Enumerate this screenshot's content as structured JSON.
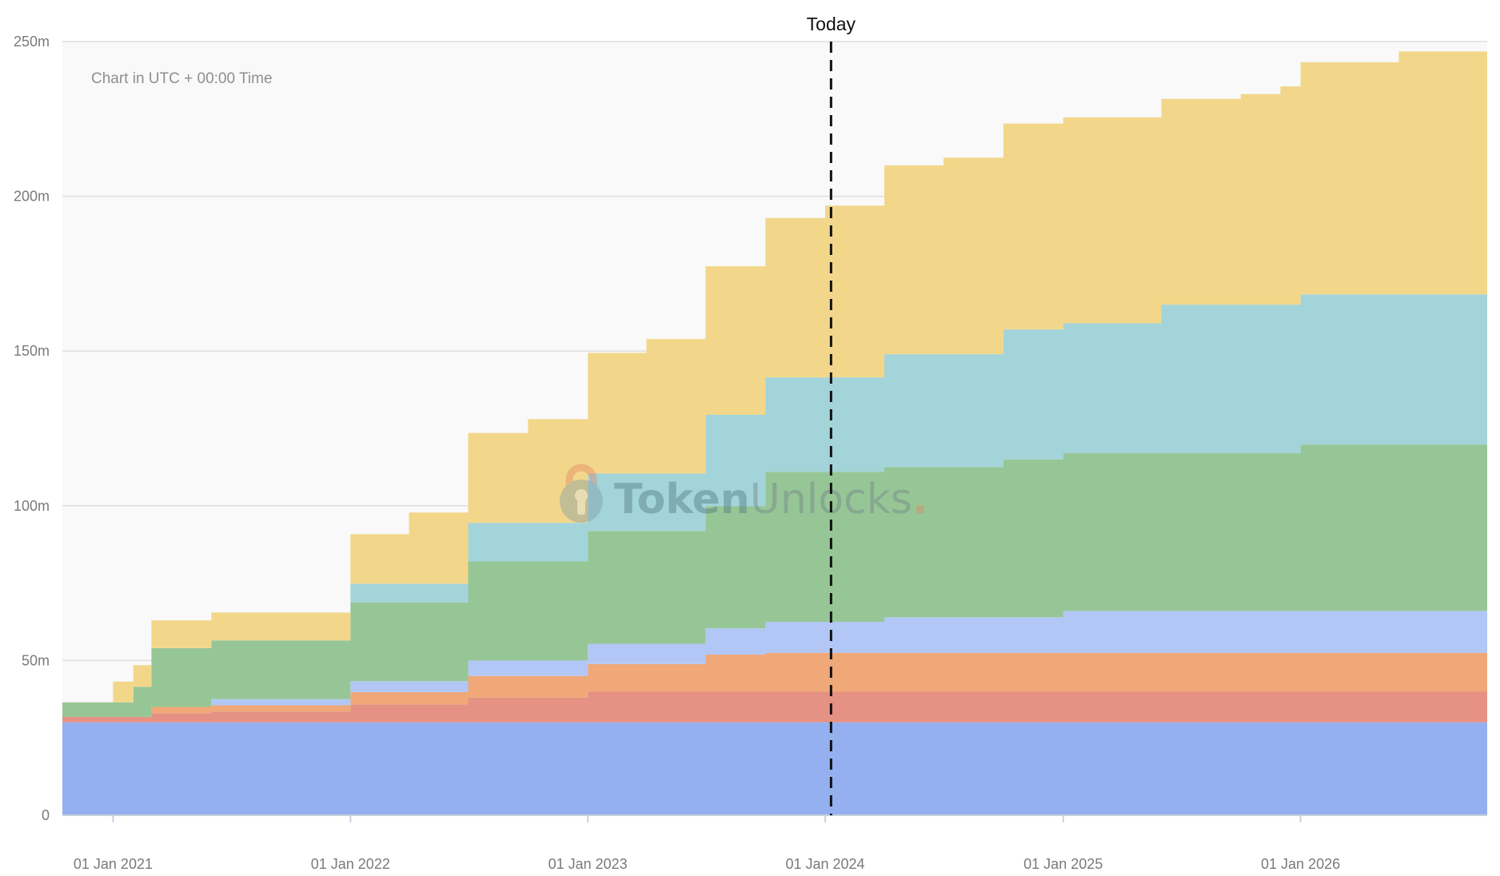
{
  "chart_data": {
    "type": "area",
    "step": true,
    "stacked": true,
    "timezone_note": "Chart in UTC + 00:00 Time",
    "today_label": "Today",
    "today_date": "2024-01-10",
    "watermark": {
      "part1": "Token",
      "part2": "Unlocks",
      "dot": "."
    },
    "ylim": [
      0,
      250000000
    ],
    "yticks": [
      {
        "value": 0,
        "label": "0"
      },
      {
        "value": 50000000,
        "label": "50m"
      },
      {
        "value": 100000000,
        "label": "100m"
      },
      {
        "value": 150000000,
        "label": "150m"
      },
      {
        "value": 200000000,
        "label": "200m"
      },
      {
        "value": 250000000,
        "label": "250m"
      }
    ],
    "xlim": [
      "2020-10-15",
      "2026-10-15"
    ],
    "xticks": [
      {
        "date": "2021-01-01",
        "label": "01 Jan 2021"
      },
      {
        "date": "2022-01-01",
        "label": "01 Jan 2022"
      },
      {
        "date": "2023-01-01",
        "label": "01 Jan 2023"
      },
      {
        "date": "2024-01-01",
        "label": "01 Jan 2024"
      },
      {
        "date": "2025-01-01",
        "label": "01 Jan 2025"
      },
      {
        "date": "2026-01-01",
        "label": "01 Jan 2026"
      }
    ],
    "grid": true,
    "legend": "none",
    "series": [
      {
        "color": "#94b0f1",
        "points": [
          [
            "2020-10-15",
            30000000
          ],
          [
            "2026-10-15",
            30000000
          ]
        ]
      },
      {
        "color": "#e59184",
        "points": [
          [
            "2020-10-15",
            1800000
          ],
          [
            "2021-03-01",
            3000000
          ],
          [
            "2021-06-01",
            3500000
          ],
          [
            "2022-01-01",
            5800000
          ],
          [
            "2022-07-01",
            8000000
          ],
          [
            "2023-01-01",
            9900000
          ],
          [
            "2023-07-01",
            9900000
          ],
          [
            "2024-01-01",
            9900000
          ],
          [
            "2026-10-15",
            9900000
          ]
        ]
      },
      {
        "color": "#f0a878",
        "points": [
          [
            "2020-10-15",
            0
          ],
          [
            "2021-03-01",
            2000000
          ],
          [
            "2021-06-01",
            2000000
          ],
          [
            "2022-01-01",
            4000000
          ],
          [
            "2022-07-01",
            7000000
          ],
          [
            "2023-01-01",
            9000000
          ],
          [
            "2023-07-01",
            12000000
          ],
          [
            "2023-10-01",
            12600000
          ],
          [
            "2024-01-01",
            12600000
          ],
          [
            "2026-10-15",
            12600000
          ]
        ]
      },
      {
        "color": "#b2c7f5",
        "points": [
          [
            "2020-10-15",
            0
          ],
          [
            "2021-03-01",
            0
          ],
          [
            "2021-06-01",
            2000000
          ],
          [
            "2022-01-01",
            3500000
          ],
          [
            "2022-07-01",
            5000000
          ],
          [
            "2023-01-01",
            6500000
          ],
          [
            "2023-07-01",
            8500000
          ],
          [
            "2023-10-01",
            10000000
          ],
          [
            "2024-04-01",
            11500000
          ],
          [
            "2025-01-01",
            13500000
          ],
          [
            "2026-10-15",
            13500000
          ]
        ]
      },
      {
        "color": "#97c696",
        "points": [
          [
            "2020-10-15",
            4700000
          ],
          [
            "2021-01-01",
            4700000
          ],
          [
            "2021-02-01",
            9700000
          ],
          [
            "2021-03-01",
            19000000
          ],
          [
            "2021-06-01",
            19000000
          ],
          [
            "2022-01-01",
            25500000
          ],
          [
            "2022-07-01",
            32000000
          ],
          [
            "2023-01-01",
            36500000
          ],
          [
            "2023-07-01",
            39500000
          ],
          [
            "2023-10-01",
            48500000
          ],
          [
            "2024-04-01",
            48500000
          ],
          [
            "2024-10-01",
            51000000
          ],
          [
            "2025-10-01",
            51000000
          ],
          [
            "2026-01-01",
            53800000
          ],
          [
            "2026-10-15",
            53800000
          ]
        ]
      },
      {
        "color": "#a3d4d9",
        "points": [
          [
            "2020-10-15",
            0
          ],
          [
            "2022-01-01",
            6000000
          ],
          [
            "2022-07-01",
            12500000
          ],
          [
            "2023-01-01",
            18500000
          ],
          [
            "2023-07-01",
            29500000
          ],
          [
            "2023-10-01",
            30500000
          ],
          [
            "2024-04-01",
            36500000
          ],
          [
            "2024-10-01",
            42000000
          ],
          [
            "2025-06-01",
            48000000
          ],
          [
            "2026-01-01",
            48500000
          ],
          [
            "2026-10-15",
            48500000
          ]
        ]
      },
      {
        "color": "#f2d78b",
        "points": [
          [
            "2020-10-15",
            0
          ],
          [
            "2021-01-01",
            6700000
          ],
          [
            "2021-02-01",
            7000000
          ],
          [
            "2021-03-01",
            9000000
          ],
          [
            "2021-06-01",
            9000000
          ],
          [
            "2022-01-01",
            16000000
          ],
          [
            "2022-04-01",
            23000000
          ],
          [
            "2022-07-01",
            29000000
          ],
          [
            "2022-10-01",
            33500000
          ],
          [
            "2023-01-01",
            39000000
          ],
          [
            "2023-04-01",
            43500000
          ],
          [
            "2023-07-01",
            48000000
          ],
          [
            "2023-10-01",
            51500000
          ],
          [
            "2024-01-01",
            55500000
          ],
          [
            "2024-04-01",
            61000000
          ],
          [
            "2024-07-01",
            63500000
          ],
          [
            "2024-10-01",
            66500000
          ],
          [
            "2025-06-01",
            66500000
          ],
          [
            "2025-10-01",
            68000000
          ],
          [
            "2025-12-01",
            70500000
          ],
          [
            "2026-01-01",
            75000000
          ],
          [
            "2026-06-01",
            78500000
          ],
          [
            "2026-10-15",
            78500000
          ]
        ]
      }
    ]
  }
}
